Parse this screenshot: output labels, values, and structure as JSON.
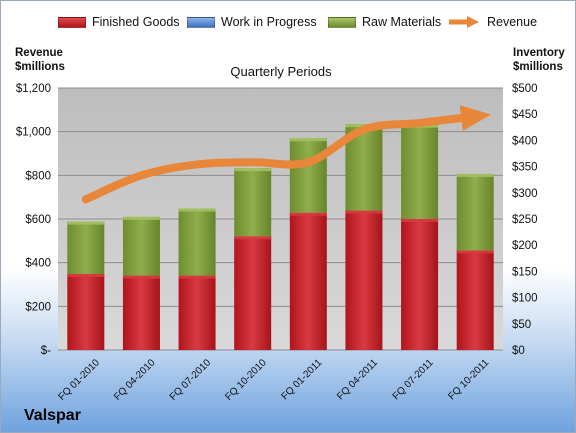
{
  "brand": "Valspar",
  "axis_titles": {
    "left_line1": "Revenue",
    "left_line2": "$millions",
    "right_line1": "Inventory",
    "right_line2": "$millions"
  },
  "colors": {
    "finished_goods": "#c0262d",
    "work_in_progress": "#4a7fcf",
    "raw_materials": "#7f9f3c",
    "revenue": "#e8873a",
    "plot_bg": "#c8c8c8"
  },
  "chart_data": {
    "type": "bar",
    "title": "Quarterly Periods",
    "stacked": true,
    "categories": [
      "FQ 01-2010",
      "FQ 04-2010",
      "FQ 07-2010",
      "FQ 10-2010",
      "FQ 01-2011",
      "FQ 04-2011",
      "FQ 07-2011",
      "FQ 10-2011"
    ],
    "series": [
      {
        "name": "Finished Goods",
        "axis": "right",
        "values": [
          145,
          142,
          142,
          217,
          262,
          266,
          250,
          190
        ]
      },
      {
        "name": "Work in Progress",
        "axis": "right",
        "values": [
          0,
          0,
          0,
          0,
          0,
          0,
          0,
          0
        ]
      },
      {
        "name": "Raw Materials",
        "axis": "right",
        "values": [
          100,
          112,
          128,
          130,
          142,
          165,
          180,
          146
        ]
      },
      {
        "name": "Revenue",
        "type": "line",
        "axis": "left",
        "values": [
          690,
          800,
          850,
          860,
          860,
          1010,
          1040,
          1070
        ]
      }
    ],
    "y_left": {
      "ylim": [
        0,
        1200
      ],
      "ticks": [
        "$-",
        "$200",
        "$400",
        "$600",
        "$800",
        "$1,000",
        "$1,200"
      ]
    },
    "y_right": {
      "ylim": [
        0,
        500
      ],
      "ticks": [
        "$0",
        "$50",
        "$100",
        "$150",
        "$200",
        "$250",
        "$300",
        "$350",
        "$400",
        "$450",
        "$500"
      ]
    },
    "grid": true,
    "legend": "top"
  }
}
